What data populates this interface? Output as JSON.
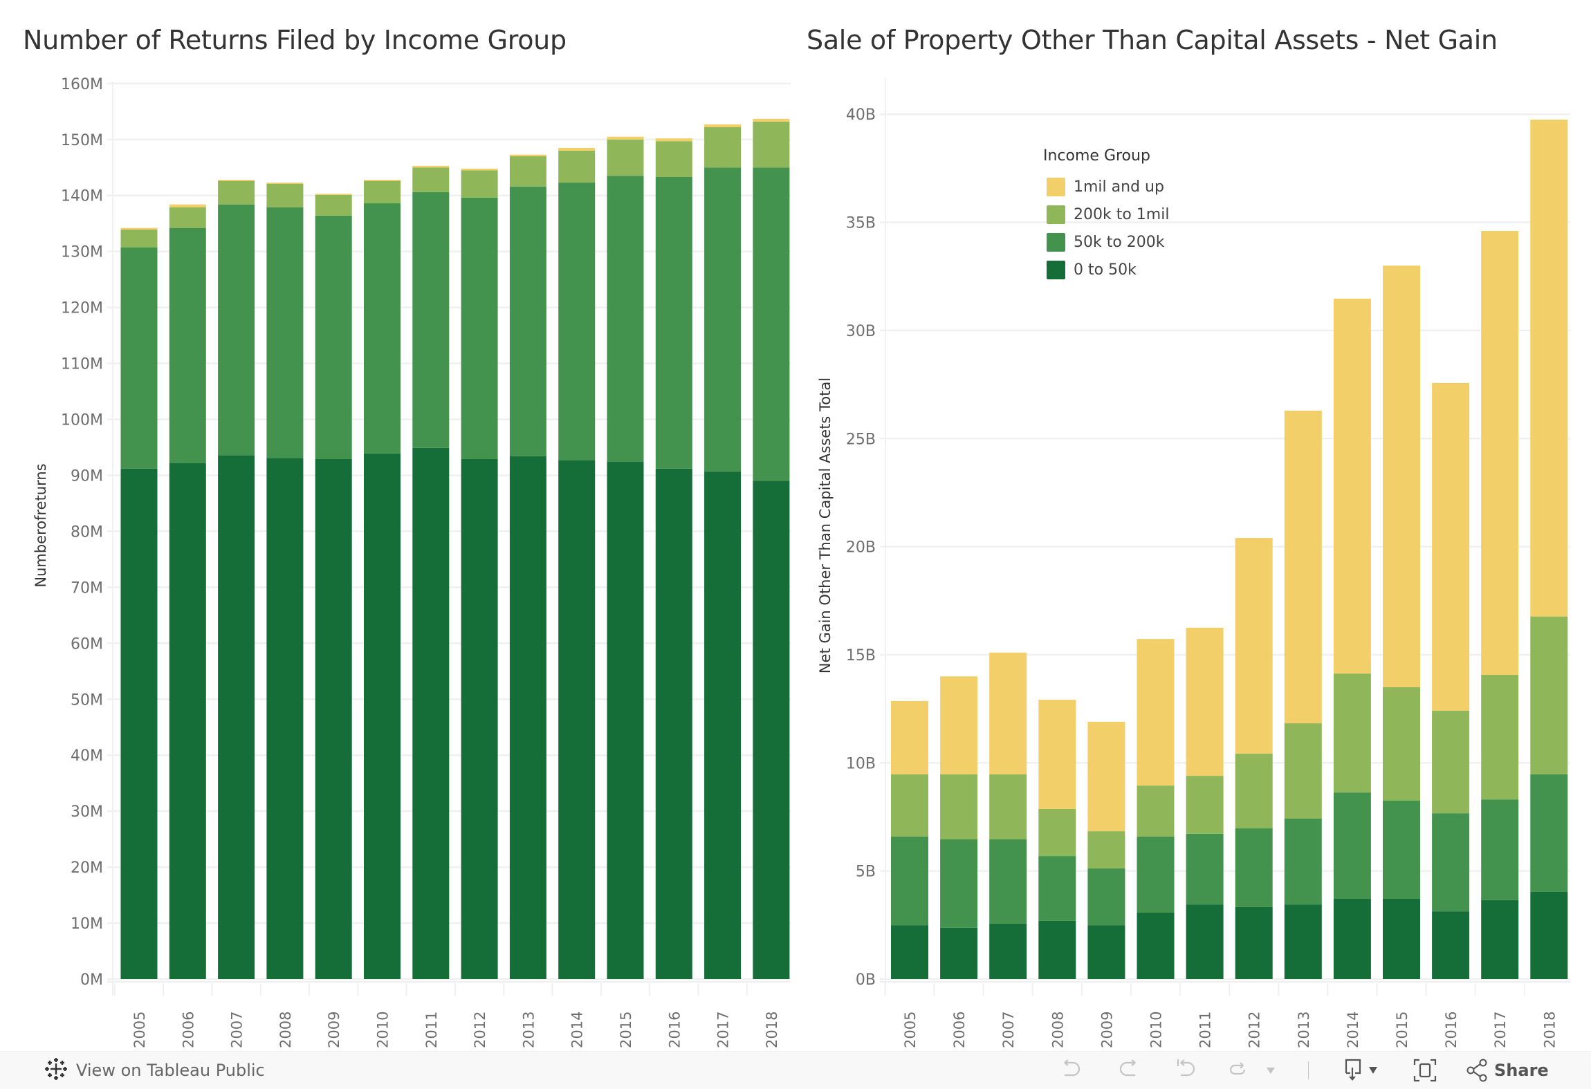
{
  "colors": {
    "1mil and up": "#f2cf68",
    "200k to 1mil": "#8fb75a",
    "50k to 200k": "#43934f",
    "0 to 50k": "#156d38",
    "grid": "#f0f0f0",
    "footer_bg": "#f8f8f8"
  },
  "legend": {
    "title": "Income Group",
    "items": [
      {
        "label": "1mil and up",
        "color": "#f2cf68"
      },
      {
        "label": "200k to 1mil",
        "color": "#8fb75a"
      },
      {
        "label": "50k to 200k",
        "color": "#43934f"
      },
      {
        "label": "0 to 50k",
        "color": "#156d38"
      }
    ]
  },
  "chart_data": [
    {
      "type": "bar",
      "stacked": true,
      "title": "Number of Returns Filed by Income Group",
      "xlabel": "",
      "ylabel": "Numberofreturns",
      "units": "M",
      "ylim": [
        0,
        162
      ],
      "yticks": [
        0,
        10,
        20,
        30,
        40,
        50,
        60,
        70,
        80,
        90,
        100,
        110,
        120,
        130,
        140,
        150,
        160
      ],
      "ytick_labels": [
        "0M",
        "10M",
        "20M",
        "30M",
        "40M",
        "50M",
        "60M",
        "70M",
        "80M",
        "90M",
        "100M",
        "110M",
        "120M",
        "130M",
        "140M",
        "150M",
        "160M"
      ],
      "grid": true,
      "categories": [
        "2005",
        "2006",
        "2007",
        "2008",
        "2009",
        "2010",
        "2011",
        "2012",
        "2013",
        "2014",
        "2015",
        "2016",
        "2017",
        "2018"
      ],
      "series": [
        {
          "name": "0 to 50k",
          "values": [
            91.2,
            92.2,
            93.6,
            93.1,
            92.9,
            93.9,
            94.9,
            92.9,
            93.4,
            92.7,
            92.4,
            91.2,
            90.7,
            89.0
          ]
        },
        {
          "name": "50k to 200k",
          "values": [
            39.5,
            42.0,
            44.8,
            44.8,
            43.5,
            44.7,
            45.7,
            46.7,
            48.2,
            49.6,
            51.1,
            52.1,
            54.3,
            56.0
          ]
        },
        {
          "name": "200k to 1mil",
          "values": [
            3.2,
            3.7,
            4.2,
            4.2,
            3.7,
            4.0,
            4.4,
            4.9,
            5.4,
            5.7,
            6.5,
            6.4,
            7.2,
            8.2
          ]
        },
        {
          "name": "1mil and up",
          "values": [
            0.3,
            0.5,
            0.2,
            0.2,
            0.2,
            0.2,
            0.3,
            0.3,
            0.3,
            0.5,
            0.5,
            0.5,
            0.5,
            0.5
          ]
        }
      ]
    },
    {
      "type": "bar",
      "stacked": true,
      "title": "Sale of Property Other Than Capital Assets - Net Gain",
      "xlabel": "",
      "ylabel": "Net Gain Other Than Capital Assets Total",
      "units": "B",
      "ylim": [
        0,
        41.5
      ],
      "yticks": [
        0,
        5,
        10,
        15,
        20,
        25,
        30,
        35,
        40
      ],
      "ytick_labels": [
        "0B",
        "5B",
        "10B",
        "15B",
        "20B",
        "25B",
        "30B",
        "35B",
        "40B"
      ],
      "grid": true,
      "legend_position": "top-left",
      "categories": [
        "2005",
        "2006",
        "2007",
        "2008",
        "2009",
        "2010",
        "2011",
        "2012",
        "2013",
        "2014",
        "2015",
        "2016",
        "2017",
        "2018"
      ],
      "series": [
        {
          "name": "0 to 50k",
          "values": [
            2.49,
            2.37,
            2.56,
            2.69,
            2.49,
            3.07,
            3.45,
            3.33,
            3.45,
            3.71,
            3.71,
            3.13,
            3.65,
            4.03
          ]
        },
        {
          "name": "50k to 200k",
          "values": [
            4.1,
            4.09,
            3.9,
            3.0,
            2.63,
            3.52,
            3.27,
            3.64,
            3.97,
            4.92,
            4.54,
            4.54,
            4.66,
            5.44
          ]
        },
        {
          "name": "200k to 1mil",
          "values": [
            2.88,
            3.01,
            3.01,
            2.18,
            1.72,
            2.36,
            2.68,
            3.46,
            4.41,
            5.5,
            5.25,
            4.74,
            5.76,
            7.3
          ]
        },
        {
          "name": "1mil and up",
          "values": [
            3.39,
            4.53,
            5.63,
            5.05,
            5.06,
            6.78,
            6.85,
            9.97,
            14.46,
            17.34,
            19.5,
            15.16,
            20.53,
            22.98
          ]
        }
      ]
    }
  ],
  "footer": {
    "view_label": "View on Tableau Public",
    "share_label": "Share",
    "icons": [
      "tableau-logo-icon",
      "undo-icon",
      "redo-icon",
      "revert-icon",
      "refresh-icon",
      "pause-dropdown-icon",
      "download-icon",
      "fullscreen-icon",
      "share-icon"
    ]
  }
}
